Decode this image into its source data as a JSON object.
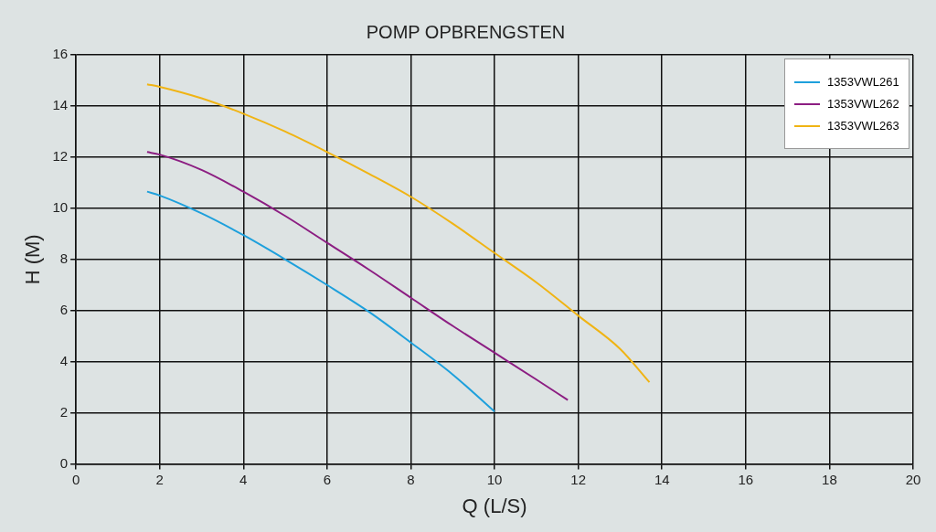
{
  "chart_data": {
    "type": "line",
    "title": "POMP OPBRENGSTEN",
    "xlabel": "Q (L/S)",
    "ylabel": "H (M)",
    "xlim": [
      0,
      20
    ],
    "xticks": [
      0,
      2,
      4,
      6,
      8,
      10,
      12,
      14,
      16,
      18,
      20
    ],
    "ylim": [
      0,
      16
    ],
    "yticks": [
      0,
      2,
      4,
      6,
      8,
      10,
      12,
      14,
      16
    ],
    "grid": true,
    "legend": "top right",
    "marker": "none",
    "line_style": "solid",
    "series": [
      {
        "name": "1353VWL261",
        "color": "#1ea0dc",
        "x": [
          1.7,
          2,
          3,
          4,
          5,
          6,
          7,
          8,
          9,
          10
        ],
        "values": [
          10.65,
          10.5,
          9.8,
          8.95,
          8.0,
          7.0,
          5.95,
          4.75,
          3.5,
          2.05
        ]
      },
      {
        "name": "1353VWL262",
        "color": "#8c1e82",
        "x": [
          1.7,
          2,
          3,
          4,
          5,
          6,
          7,
          8,
          9,
          10,
          11,
          11.75
        ],
        "values": [
          12.2,
          12.1,
          11.5,
          10.65,
          9.7,
          8.65,
          7.6,
          6.5,
          5.4,
          4.35,
          3.3,
          2.5
        ]
      },
      {
        "name": "1353VWL263",
        "color": "#f0b414",
        "x": [
          1.7,
          2,
          3,
          4,
          5,
          6,
          7,
          8,
          9,
          10,
          11,
          12,
          13,
          13.7
        ],
        "values": [
          14.85,
          14.75,
          14.3,
          13.7,
          13.0,
          12.2,
          11.35,
          10.45,
          9.4,
          8.25,
          7.1,
          5.8,
          4.5,
          3.2
        ]
      }
    ]
  }
}
